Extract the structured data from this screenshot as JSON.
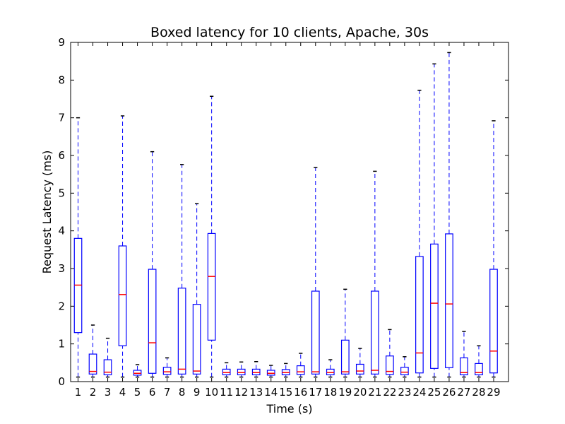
{
  "chart_data": {
    "type": "box",
    "title": "Boxed latency for 10 clients, Apache, 30s",
    "xlabel": "Time (s)",
    "ylabel": "Request Latency (ms)",
    "ylim": [
      0,
      9
    ],
    "yticks": [
      "0",
      "1",
      "2",
      "3",
      "4",
      "5",
      "6",
      "7",
      "8",
      "9"
    ],
    "grid": false,
    "colors": {
      "box": "#0000ff",
      "median": "#ff0000",
      "whisker": "#0000ff",
      "cap": "#000000"
    },
    "boxes": [
      {
        "label": "1",
        "whislo": 0.12,
        "q1": 1.3,
        "med": 2.56,
        "q3": 3.8,
        "whishi": 7.0
      },
      {
        "label": "2",
        "whislo": 0.12,
        "q1": 0.2,
        "med": 0.27,
        "q3": 0.73,
        "whishi": 1.5
      },
      {
        "label": "3",
        "whislo": 0.12,
        "q1": 0.18,
        "med": 0.25,
        "q3": 0.58,
        "whishi": 1.15
      },
      {
        "label": "4",
        "whislo": 0.12,
        "q1": 0.95,
        "med": 2.31,
        "q3": 3.6,
        "whishi": 7.05
      },
      {
        "label": "5",
        "whislo": 0.12,
        "q1": 0.17,
        "med": 0.22,
        "q3": 0.3,
        "whishi": 0.45
      },
      {
        "label": "6",
        "whislo": 0.12,
        "q1": 0.22,
        "med": 1.03,
        "q3": 2.98,
        "whishi": 6.1
      },
      {
        "label": "7",
        "whislo": 0.12,
        "q1": 0.19,
        "med": 0.26,
        "q3": 0.38,
        "whishi": 0.63
      },
      {
        "label": "8",
        "whislo": 0.12,
        "q1": 0.2,
        "med": 0.33,
        "q3": 2.48,
        "whishi": 5.76
      },
      {
        "label": "9",
        "whislo": 0.12,
        "q1": 0.2,
        "med": 0.28,
        "q3": 2.05,
        "whishi": 4.72
      },
      {
        "label": "10",
        "whislo": 0.12,
        "q1": 1.1,
        "med": 2.79,
        "q3": 3.93,
        "whishi": 7.57
      },
      {
        "label": "11",
        "whislo": 0.12,
        "q1": 0.18,
        "med": 0.24,
        "q3": 0.33,
        "whishi": 0.5
      },
      {
        "label": "12",
        "whislo": 0.12,
        "q1": 0.18,
        "med": 0.24,
        "q3": 0.33,
        "whishi": 0.52
      },
      {
        "label": "13",
        "whislo": 0.12,
        "q1": 0.18,
        "med": 0.24,
        "q3": 0.33,
        "whishi": 0.53
      },
      {
        "label": "14",
        "whislo": 0.12,
        "q1": 0.17,
        "med": 0.22,
        "q3": 0.3,
        "whishi": 0.43
      },
      {
        "label": "15",
        "whislo": 0.12,
        "q1": 0.18,
        "med": 0.24,
        "q3": 0.32,
        "whishi": 0.48
      },
      {
        "label": "16",
        "whislo": 0.12,
        "q1": 0.19,
        "med": 0.26,
        "q3": 0.42,
        "whishi": 0.75
      },
      {
        "label": "17",
        "whislo": 0.12,
        "q1": 0.2,
        "med": 0.26,
        "q3": 2.4,
        "whishi": 5.68
      },
      {
        "label": "18",
        "whislo": 0.12,
        "q1": 0.18,
        "med": 0.24,
        "q3": 0.33,
        "whishi": 0.58
      },
      {
        "label": "19",
        "whislo": 0.12,
        "q1": 0.2,
        "med": 0.26,
        "q3": 1.1,
        "whishi": 2.45
      },
      {
        "label": "20",
        "whislo": 0.12,
        "q1": 0.2,
        "med": 0.28,
        "q3": 0.46,
        "whishi": 0.88
      },
      {
        "label": "21",
        "whislo": 0.12,
        "q1": 0.2,
        "med": 0.3,
        "q3": 2.4,
        "whishi": 5.58
      },
      {
        "label": "22",
        "whislo": 0.12,
        "q1": 0.19,
        "med": 0.27,
        "q3": 0.68,
        "whishi": 1.38
      },
      {
        "label": "23",
        "whislo": 0.12,
        "q1": 0.18,
        "med": 0.25,
        "q3": 0.38,
        "whishi": 0.66
      },
      {
        "label": "24",
        "whislo": 0.12,
        "q1": 0.23,
        "med": 0.76,
        "q3": 3.32,
        "whishi": 7.73
      },
      {
        "label": "25",
        "whislo": 0.12,
        "q1": 0.35,
        "med": 2.08,
        "q3": 3.65,
        "whishi": 8.43
      },
      {
        "label": "26",
        "whislo": 0.12,
        "q1": 0.37,
        "med": 2.06,
        "q3": 3.92,
        "whishi": 8.73
      },
      {
        "label": "27",
        "whislo": 0.12,
        "q1": 0.18,
        "med": 0.24,
        "q3": 0.63,
        "whishi": 1.33
      },
      {
        "label": "28",
        "whislo": 0.12,
        "q1": 0.18,
        "med": 0.24,
        "q3": 0.48,
        "whishi": 0.95
      },
      {
        "label": "29",
        "whislo": 0.12,
        "q1": 0.23,
        "med": 0.81,
        "q3": 2.98,
        "whishi": 6.92
      }
    ]
  }
}
